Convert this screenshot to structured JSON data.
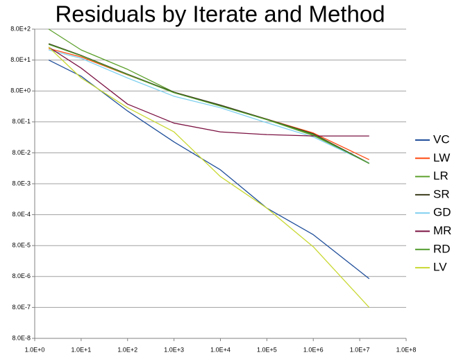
{
  "chart_data": {
    "type": "line",
    "title": "Residuals by Iterate and Method",
    "x": [
      2,
      10,
      100,
      1000,
      10000,
      100000,
      1000000,
      16000000
    ],
    "xscale": "log",
    "yscale": "log",
    "grid": true,
    "legend": "right",
    "xlim": [
      1,
      100000000
    ],
    "ylim": [
      8e-08,
      800
    ],
    "xticks": [
      {
        "value": 1,
        "label": "1.0E+0"
      },
      {
        "value": 10,
        "label": "1.0E+1"
      },
      {
        "value": 100,
        "label": "1.0E+2"
      },
      {
        "value": 1000,
        "label": "1.0E+3"
      },
      {
        "value": 10000,
        "label": "1.0E+4"
      },
      {
        "value": 100000,
        "label": "1.0E+5"
      },
      {
        "value": 1000000,
        "label": "1.0E+6"
      },
      {
        "value": 10000000,
        "label": "1.0E+7"
      },
      {
        "value": 100000000,
        "label": "1.0E+8"
      }
    ],
    "yticks": [
      {
        "value": 8e-08,
        "label": "8.0E-8"
      },
      {
        "value": 8e-07,
        "label": "8.0E-7"
      },
      {
        "value": 8e-06,
        "label": "8.0E-6"
      },
      {
        "value": 8e-05,
        "label": "8.0E-5"
      },
      {
        "value": 0.0008,
        "label": "8.0E-4"
      },
      {
        "value": 0.008,
        "label": "8.0E-3"
      },
      {
        "value": 0.08,
        "label": "8.0E-2"
      },
      {
        "value": 0.8,
        "label": "8.0E-1"
      },
      {
        "value": 8,
        "label": "8.0E+0"
      },
      {
        "value": 80,
        "label": "8.0E+1"
      },
      {
        "value": 800,
        "label": "8.0E+2"
      }
    ],
    "series": [
      {
        "name": "VC",
        "color": "#1f4e9a",
        "values": [
          80,
          24,
          1.8,
          0.18,
          0.0225,
          0.0013,
          0.00018,
          6.8e-06
        ]
      },
      {
        "name": "LW",
        "color": "#ff4a10",
        "values": [
          188,
          101,
          26.4,
          7.3,
          2.7,
          0.98,
          0.35,
          0.048
        ]
      },
      {
        "name": "LR",
        "color": "#5ca02c",
        "values": [
          800,
          170,
          40,
          7.3,
          2.7,
          0.94,
          0.29,
          0.037
        ]
      },
      {
        "name": "SR",
        "color": "#3a3a1a",
        "values": [
          270,
          113,
          28,
          7.3,
          2.8,
          0.98,
          0.33,
          0.037
        ]
      },
      {
        "name": "GD",
        "color": "#7fd0f0",
        "values": [
          170,
          91,
          21,
          5.4,
          2.3,
          0.75,
          0.26,
          0.037
        ]
      },
      {
        "name": "MR",
        "color": "#7a1040",
        "values": [
          209,
          44,
          3.0,
          0.73,
          0.38,
          0.31,
          0.28,
          0.28
        ]
      },
      {
        "name": "RD",
        "color": "#4e9a2a",
        "values": [
          257,
          110,
          27,
          7.0,
          2.6,
          0.95,
          0.31,
          0.036
        ]
      },
      {
        "name": "LV",
        "color": "#c8d830",
        "values": [
          209,
          21,
          2.3,
          0.38,
          0.0136,
          0.0013,
          7.3e-05,
          8e-07
        ]
      }
    ]
  }
}
